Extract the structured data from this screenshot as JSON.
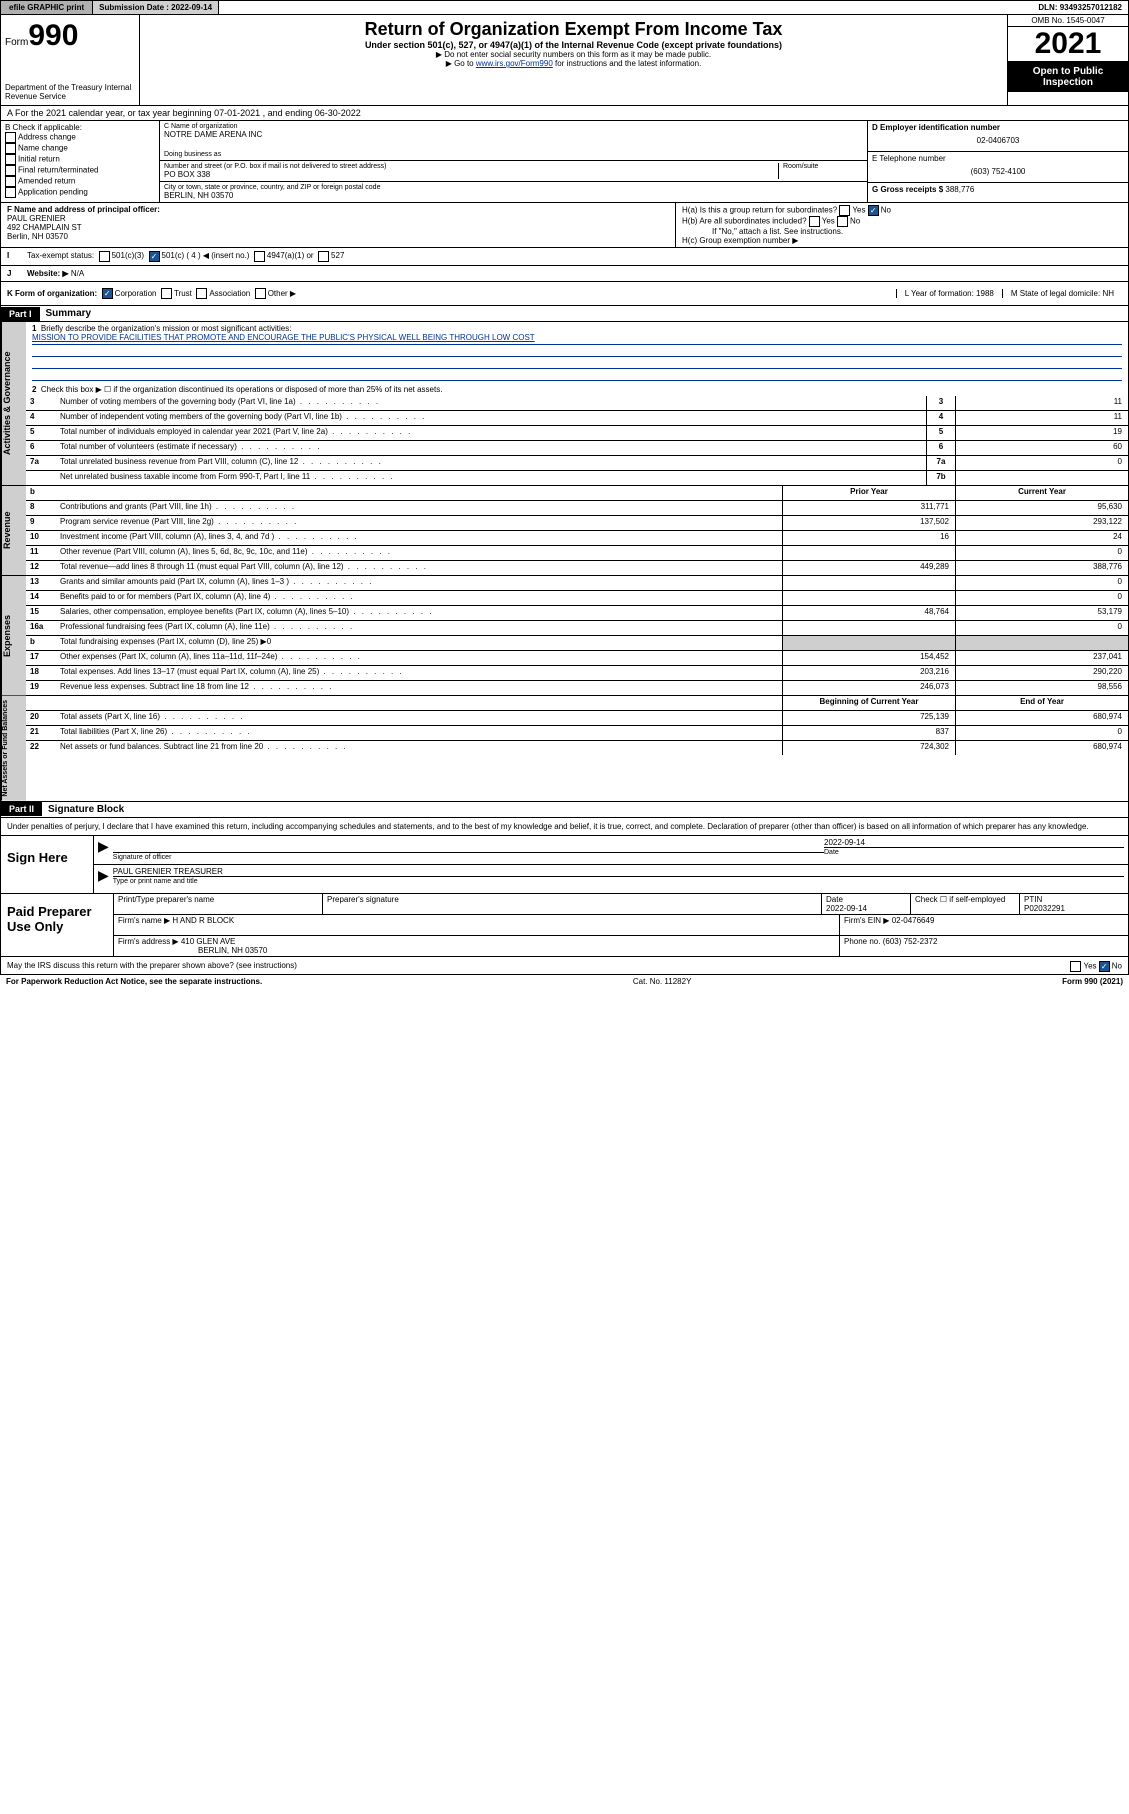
{
  "topbar": {
    "efile": "efile GRAPHIC print",
    "sub_label": "Submission Date : 2022-09-14",
    "dln": "DLN: 93493257012182"
  },
  "header": {
    "form": "Form",
    "num": "990",
    "dept": "Department of the Treasury Internal Revenue Service",
    "title": "Return of Organization Exempt From Income Tax",
    "sub": "Under section 501(c), 527, or 4947(a)(1) of the Internal Revenue Code (except private foundations)",
    "note1": "▶ Do not enter social security numbers on this form as it may be made public.",
    "note2_pre": "▶ Go to ",
    "note2_link": "www.irs.gov/Form990",
    "note2_post": " for instructions and the latest information.",
    "omb": "OMB No. 1545-0047",
    "year": "2021",
    "otp": "Open to Public Inspection"
  },
  "row_a": "A For the 2021 calendar year, or tax year beginning 07-01-2021   , and ending 06-30-2022",
  "col_b": {
    "title": "B Check if applicable:",
    "items": [
      "Address change",
      "Name change",
      "Initial return",
      "Final return/terminated",
      "Amended return",
      "Application pending"
    ]
  },
  "col_c": {
    "name_label": "C Name of organization",
    "name": "NOTRE DAME ARENA INC",
    "dba": "Doing business as",
    "addr_label": "Number and street (or P.O. box if mail is not delivered to street address)",
    "addr": "PO BOX 338",
    "room": "Room/suite",
    "city_label": "City or town, state or province, country, and ZIP or foreign postal code",
    "city": "BERLIN, NH  03570"
  },
  "col_d": {
    "ein_label": "D Employer identification number",
    "ein": "02-0406703",
    "tel_label": "E Telephone number",
    "tel": "(603) 752-4100",
    "gross_label": "G Gross receipts $",
    "gross": "388,776"
  },
  "row_f": {
    "label": "F Name and address of principal officer:",
    "name": "PAUL GRENIER",
    "addr1": "492 CHAMPLAIN ST",
    "addr2": "Berlin, NH  03570",
    "ha": "H(a)  Is this a group return for subordinates?",
    "ha_ans": "No",
    "hb": "H(b)  Are all subordinates included?",
    "hb_note": "If \"No,\" attach a list. See instructions.",
    "hc": "H(c)  Group exemption number ▶"
  },
  "row_i": {
    "label": "Tax-exempt status:",
    "opts": [
      "501(c)(3)",
      "501(c) ( 4 ) ◀ (insert no.)",
      "4947(a)(1) or",
      "527"
    ]
  },
  "row_j": {
    "label": "Website: ▶",
    "val": "N/A"
  },
  "row_k": {
    "label": "K Form of organization:",
    "opts": [
      "Corporation",
      "Trust",
      "Association",
      "Other ▶"
    ],
    "l": "L Year of formation: 1988",
    "m": "M State of legal domicile: NH"
  },
  "part1": {
    "hdr": "Part I",
    "title": "Summary",
    "q1": "Briefly describe the organization's mission or most significant activities:",
    "mission": "MISSION TO PROVIDE FACILITIES THAT PROMOTE AND ENCOURAGE THE PUBLIC'S PHYSICAL WELL BEING THROUGH LOW COST",
    "q2": "Check this box ▶ ☐  if the organization discontinued its operations or disposed of more than 25% of its net assets.",
    "lines_gov": [
      {
        "n": "3",
        "t": "Number of voting members of the governing body (Part VI, line 1a)",
        "box": "3",
        "v": "11"
      },
      {
        "n": "4",
        "t": "Number of independent voting members of the governing body (Part VI, line 1b)",
        "box": "4",
        "v": "11"
      },
      {
        "n": "5",
        "t": "Total number of individuals employed in calendar year 2021 (Part V, line 2a)",
        "box": "5",
        "v": "19"
      },
      {
        "n": "6",
        "t": "Total number of volunteers (estimate if necessary)",
        "box": "6",
        "v": "60"
      },
      {
        "n": "7a",
        "t": "Total unrelated business revenue from Part VIII, column (C), line 12",
        "box": "7a",
        "v": "0"
      },
      {
        "n": "",
        "t": "Net unrelated business taxable income from Form 990-T, Part I, line 11",
        "box": "7b",
        "v": ""
      }
    ],
    "col_hdr": {
      "b": "b",
      "prior": "Prior Year",
      "curr": "Current Year"
    },
    "lines_rev": [
      {
        "n": "8",
        "t": "Contributions and grants (Part VIII, line 1h)",
        "p": "311,771",
        "c": "95,630"
      },
      {
        "n": "9",
        "t": "Program service revenue (Part VIII, line 2g)",
        "p": "137,502",
        "c": "293,122"
      },
      {
        "n": "10",
        "t": "Investment income (Part VIII, column (A), lines 3, 4, and 7d )",
        "p": "16",
        "c": "24"
      },
      {
        "n": "11",
        "t": "Other revenue (Part VIII, column (A), lines 5, 6d, 8c, 9c, 10c, and 11e)",
        "p": "",
        "c": "0"
      },
      {
        "n": "12",
        "t": "Total revenue—add lines 8 through 11 (must equal Part VIII, column (A), line 12)",
        "p": "449,289",
        "c": "388,776"
      }
    ],
    "lines_exp": [
      {
        "n": "13",
        "t": "Grants and similar amounts paid (Part IX, column (A), lines 1–3 )",
        "p": "",
        "c": "0"
      },
      {
        "n": "14",
        "t": "Benefits paid to or for members (Part IX, column (A), line 4)",
        "p": "",
        "c": "0"
      },
      {
        "n": "15",
        "t": "Salaries, other compensation, employee benefits (Part IX, column (A), lines 5–10)",
        "p": "48,764",
        "c": "53,179"
      },
      {
        "n": "16a",
        "t": "Professional fundraising fees (Part IX, column (A), line 11e)",
        "p": "",
        "c": "0"
      },
      {
        "n": "b",
        "t": "Total fundraising expenses (Part IX, column (D), line 25) ▶0",
        "p": "—",
        "c": "—"
      },
      {
        "n": "17",
        "t": "Other expenses (Part IX, column (A), lines 11a–11d, 11f–24e)",
        "p": "154,452",
        "c": "237,041"
      },
      {
        "n": "18",
        "t": "Total expenses. Add lines 13–17 (must equal Part IX, column (A), line 25)",
        "p": "203,216",
        "c": "290,220"
      },
      {
        "n": "19",
        "t": "Revenue less expenses. Subtract line 18 from line 12",
        "p": "246,073",
        "c": "98,556"
      }
    ],
    "net_hdr": {
      "b": "Beginning of Current Year",
      "e": "End of Year"
    },
    "lines_net": [
      {
        "n": "20",
        "t": "Total assets (Part X, line 16)",
        "p": "725,139",
        "c": "680,974"
      },
      {
        "n": "21",
        "t": "Total liabilities (Part X, line 26)",
        "p": "837",
        "c": "0"
      },
      {
        "n": "22",
        "t": "Net assets or fund balances. Subtract line 21 from line 20",
        "p": "724,302",
        "c": "680,974"
      }
    ],
    "tabs": {
      "gov": "Activities & Governance",
      "rev": "Revenue",
      "exp": "Expenses",
      "net": "Net Assets or Fund Balances"
    }
  },
  "part2": {
    "hdr": "Part II",
    "title": "Signature Block",
    "decl": "Under penalties of perjury, I declare that I have examined this return, including accompanying schedules and statements, and to the best of my knowledge and belief, it is true, correct, and complete. Declaration of preparer (other than officer) is based on all information of which preparer has any knowledge.",
    "sign_here": "Sign Here",
    "sig_of": "Signature of officer",
    "sig_date": "2022-09-14",
    "date": "Date",
    "officer": "PAUL GRENIER TREASURER",
    "officer_label": "Type or print name and title",
    "paid": "Paid Preparer Use Only",
    "prep_name_label": "Print/Type preparer's name",
    "prep_sig_label": "Preparer's signature",
    "prep_date": "2022-09-14",
    "check_self": "Check ☐ if self-employed",
    "ptin_label": "PTIN",
    "ptin": "P02032291",
    "firm_name_label": "Firm's name    ▶",
    "firm_name": "H AND R BLOCK",
    "firm_ein_label": "Firm's EIN ▶",
    "firm_ein": "02-0476649",
    "firm_addr_label": "Firm's address ▶",
    "firm_addr1": "410 GLEN AVE",
    "firm_addr2": "BERLIN, NH  03570",
    "firm_phone_label": "Phone no.",
    "firm_phone": "(603) 752-2372",
    "may": "May the IRS discuss this return with the preparer shown above? (see instructions)",
    "may_ans": "No"
  },
  "footer": {
    "l": "For Paperwork Reduction Act Notice, see the separate instructions.",
    "m": "Cat. No. 11282Y",
    "r": "Form 990 (2021)"
  }
}
